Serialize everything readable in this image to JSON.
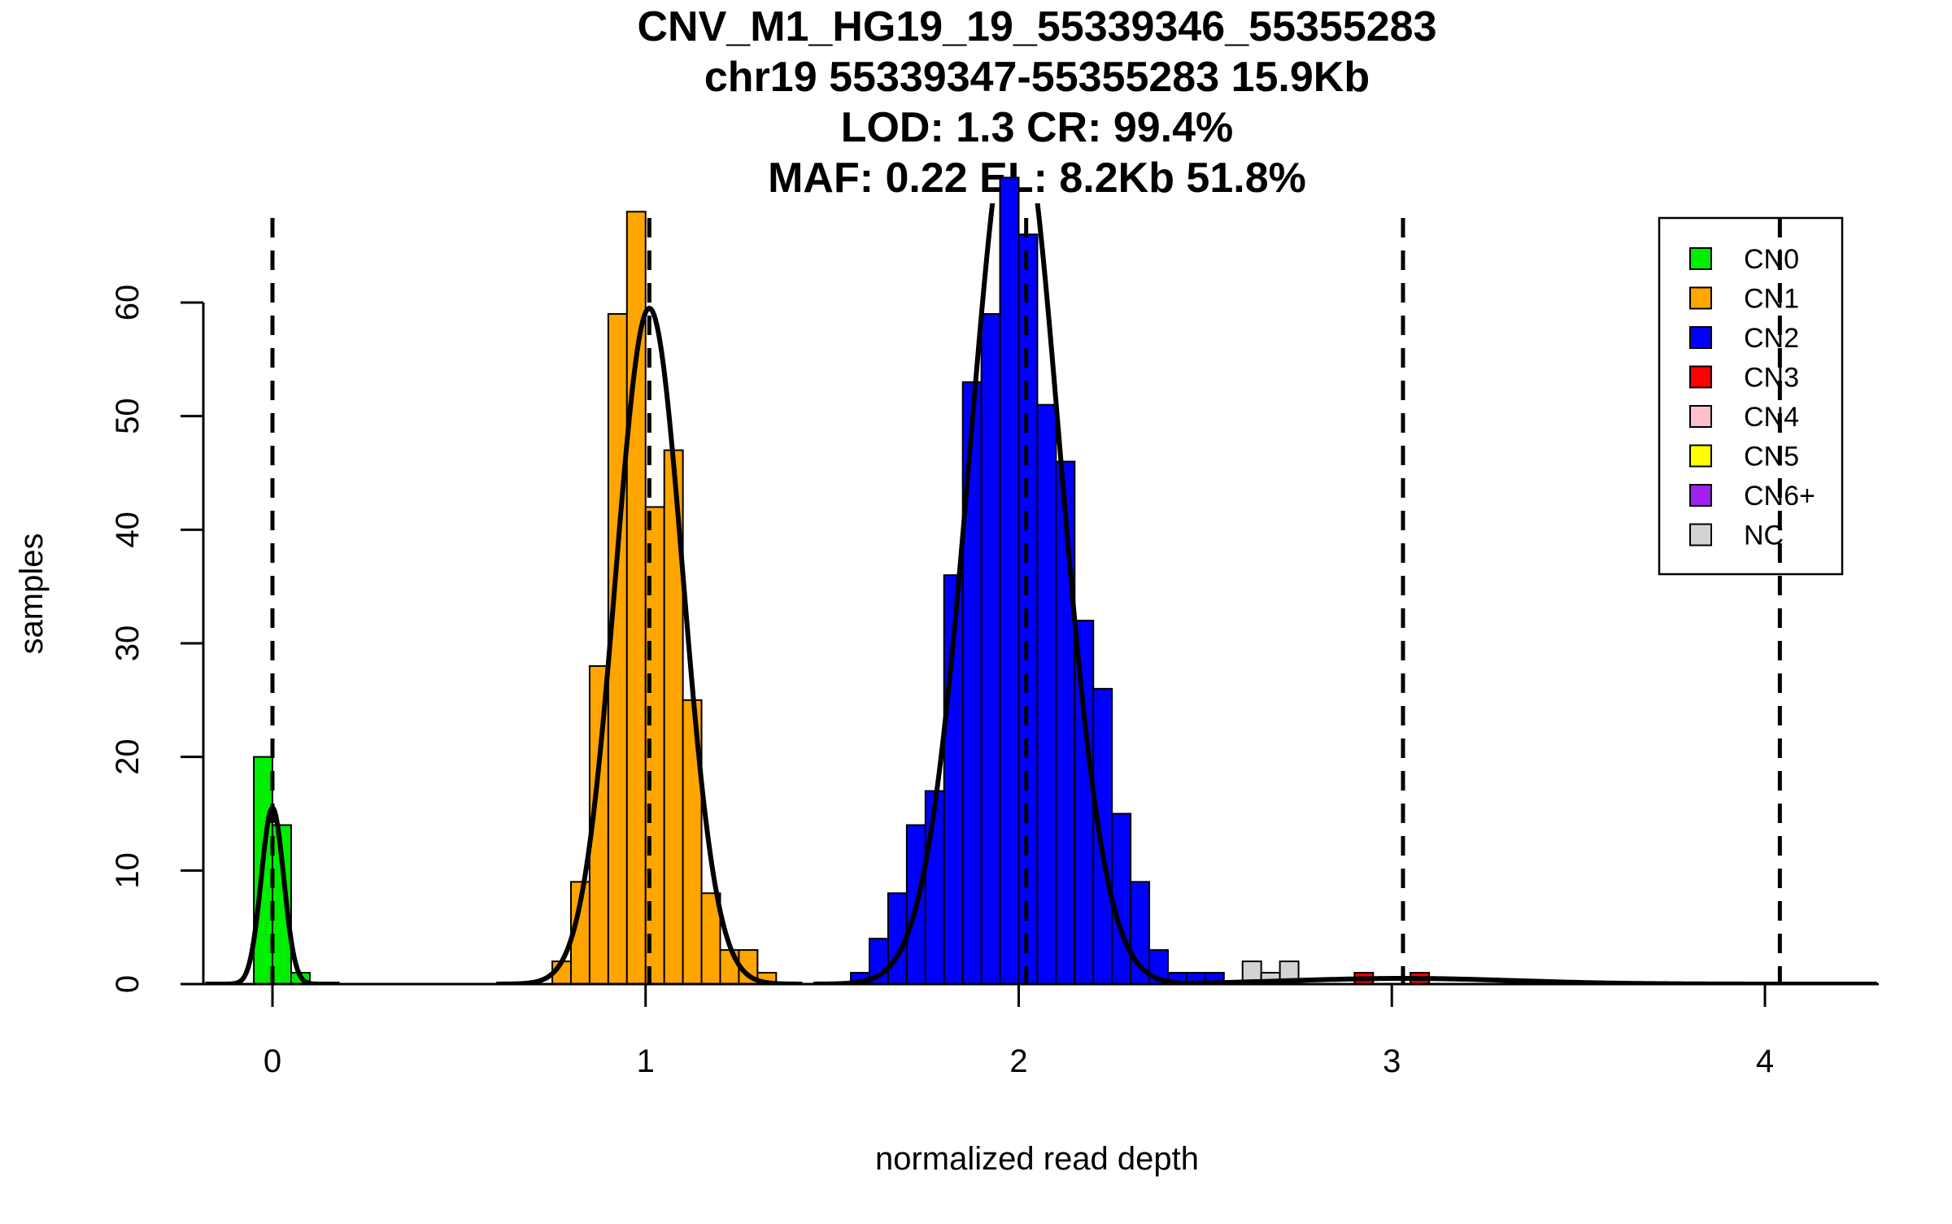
{
  "chart_data": {
    "type": "histogram",
    "title_lines": [
      "CNV_M1_HG19_19_55339346_55355283",
      "chr19 55339347-55355283 15.9Kb",
      "LOD: 1.3 CR: 99.4%",
      "MAF: 0.22 EL: 8.2Kb 51.8%"
    ],
    "xlabel": "normalized read depth",
    "ylabel": "samples",
    "xlim": [
      -0.2,
      4.3
    ],
    "ylim": [
      0,
      69
    ],
    "x_ticks": [
      0,
      1,
      2,
      3,
      4
    ],
    "x_tick_labels": [
      "0",
      "1",
      "2",
      "3",
      "4"
    ],
    "y_ticks": [
      0,
      10,
      20,
      30,
      40,
      50,
      60
    ],
    "y_tick_labels": [
      "0",
      "10",
      "20",
      "30",
      "40",
      "50",
      "60"
    ],
    "bin_width": 0.05,
    "dashed_lines_x": [
      0,
      1.01,
      2.02,
      3.03,
      4.04
    ],
    "legend": {
      "position": "top-right",
      "entries": [
        {
          "label": "CN0",
          "color": "#00ee00"
        },
        {
          "label": "CN1",
          "color": "#ffa500"
        },
        {
          "label": "CN2",
          "color": "#0000ff"
        },
        {
          "label": "CN3",
          "color": "#ff0000"
        },
        {
          "label": "CN4",
          "color": "#ffc0cb"
        },
        {
          "label": "CN5",
          "color": "#ffff00"
        },
        {
          "label": "CN6+",
          "color": "#a020f0"
        },
        {
          "label": "NC",
          "color": "#d3d3d3"
        }
      ]
    },
    "series": [
      {
        "name": "CN0",
        "color": "#00ee00",
        "bins": [
          [
            -0.025,
            20
          ],
          [
            0.025,
            14
          ],
          [
            0.075,
            1
          ]
        ]
      },
      {
        "name": "CN1",
        "color": "#ffa500",
        "bins": [
          [
            0.775,
            2
          ],
          [
            0.825,
            9
          ],
          [
            0.875,
            28
          ],
          [
            0.925,
            59
          ],
          [
            0.975,
            68
          ],
          [
            1.025,
            42
          ],
          [
            1.075,
            47
          ],
          [
            1.125,
            25
          ],
          [
            1.175,
            8
          ],
          [
            1.225,
            3
          ],
          [
            1.275,
            3
          ],
          [
            1.325,
            1
          ]
        ]
      },
      {
        "name": "CN2",
        "color": "#0000ff",
        "bins": [
          [
            1.575,
            1
          ],
          [
            1.625,
            4
          ],
          [
            1.675,
            8
          ],
          [
            1.725,
            14
          ],
          [
            1.775,
            17
          ],
          [
            1.825,
            36
          ],
          [
            1.875,
            53
          ],
          [
            1.925,
            59
          ],
          [
            1.975,
            71
          ],
          [
            2.025,
            66
          ],
          [
            2.075,
            51
          ],
          [
            2.125,
            46
          ],
          [
            2.175,
            32
          ],
          [
            2.225,
            26
          ],
          [
            2.275,
            15
          ],
          [
            2.325,
            9
          ],
          [
            2.375,
            3
          ],
          [
            2.425,
            1
          ],
          [
            2.475,
            1
          ],
          [
            2.525,
            1
          ]
        ]
      },
      {
        "name": "NC",
        "color": "#d3d3d3",
        "bins": [
          [
            2.625,
            2
          ],
          [
            2.675,
            1
          ],
          [
            2.725,
            2
          ]
        ]
      },
      {
        "name": "CN3",
        "color": "#ff0000",
        "bins": [
          [
            2.925,
            1
          ],
          [
            3.075,
            1
          ]
        ]
      }
    ],
    "fit_curves": [
      {
        "mean": 0.0,
        "sd": 0.03,
        "peak": 15.5,
        "x_range": [
          -0.18,
          0.18
        ]
      },
      {
        "mean": 1.01,
        "sd": 0.09,
        "peak": 59.5,
        "x_range": [
          0.6,
          1.42
        ]
      },
      {
        "mean": 1.99,
        "sd": 0.12,
        "peak": 78.0,
        "x_range": [
          1.45,
          2.55
        ]
      },
      {
        "mean": 3.03,
        "sd": 0.3,
        "peak": 0.5,
        "x_range": [
          2.45,
          4.3
        ]
      }
    ]
  }
}
